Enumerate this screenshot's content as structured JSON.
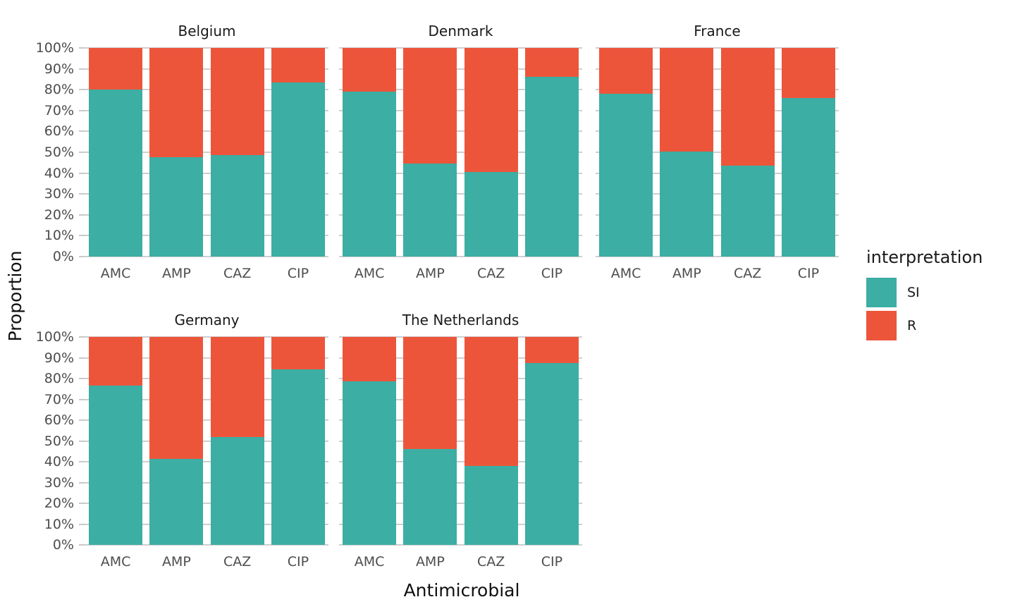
{
  "chart_data": {
    "type": "bar",
    "stacked": true,
    "normalized_unit": "percent",
    "xlabel": "Antimicrobial",
    "ylabel": "Proportion",
    "categories": [
      "AMC",
      "AMP",
      "CAZ",
      "CIP"
    ],
    "y_ticks": [
      "100%",
      "90%",
      "80%",
      "70%",
      "60%",
      "50%",
      "40%",
      "30%",
      "20%",
      "10%",
      "0%"
    ],
    "ylim": [
      0,
      100
    ],
    "grid": true,
    "legend_position": "right",
    "legend": {
      "title": "interpretation",
      "entries": [
        {
          "label": "SI",
          "color": "#3CAEA3"
        },
        {
          "label": "R",
          "color": "#ED553B"
        }
      ]
    },
    "facets": [
      {
        "title": "Belgium",
        "series": [
          {
            "name": "SI",
            "values": [
              80,
              47.5,
              48.5,
              83.5
            ]
          },
          {
            "name": "R",
            "values": [
              20,
              52.5,
              51.5,
              16.5
            ]
          }
        ]
      },
      {
        "title": "Denmark",
        "series": [
          {
            "name": "SI",
            "values": [
              79,
              44.5,
              40.5,
              86
            ]
          },
          {
            "name": "R",
            "values": [
              21,
              55.5,
              59.5,
              14
            ]
          }
        ]
      },
      {
        "title": "France",
        "series": [
          {
            "name": "SI",
            "values": [
              78,
              50.5,
              43.5,
              76
            ]
          },
          {
            "name": "R",
            "values": [
              22,
              49.5,
              56.5,
              24
            ]
          }
        ]
      },
      {
        "title": "Germany",
        "series": [
          {
            "name": "SI",
            "values": [
              76.5,
              41.5,
              52,
              84.5
            ]
          },
          {
            "name": "R",
            "values": [
              23.5,
              58.5,
              48,
              15.5
            ]
          }
        ]
      },
      {
        "title": "The Netherlands",
        "series": [
          {
            "name": "SI",
            "values": [
              78.5,
              46,
              38,
              87.5
            ]
          },
          {
            "name": "R",
            "values": [
              21.5,
              54,
              62,
              12.5
            ]
          }
        ]
      }
    ]
  },
  "colors": {
    "si": "#3CAEA3",
    "r": "#ED553B",
    "grid": "#CFCFCF",
    "tick": "#C9C9C9",
    "axis_text": "#4D4D4D",
    "title_text": "#1A1A1A"
  }
}
